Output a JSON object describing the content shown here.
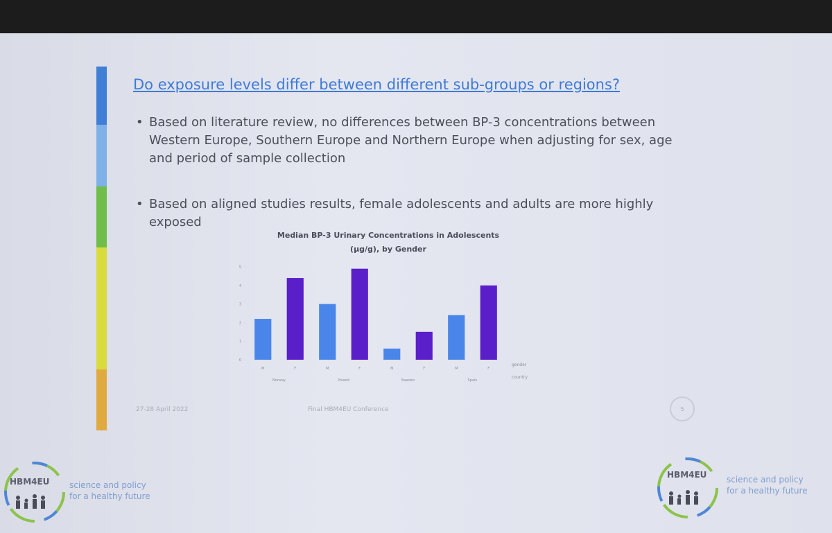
{
  "slide": {
    "title": "Do exposure levels differ between different sub-groups or regions?",
    "bullets": [
      "Based on literature review, no differences between BP-3 concentrations between Western Europe, Southern Europe and Northern Europe when adjusting for sex, age and period of sample collection",
      "Based on aligned studies results, female adolescents and adults are more highly exposed"
    ]
  },
  "chart": {
    "type": "bar",
    "title": [
      "Median BP-3 Urinary Concentrations in Adolescents",
      "(µg/g),  by Gender"
    ],
    "categories": [
      "M",
      "F",
      "M",
      "F",
      "M",
      "F",
      "M",
      "F"
    ],
    "groups": [
      "Norway",
      "Poland",
      "Sweden",
      "Spain"
    ],
    "values": [
      2.2,
      4.4,
      3.0,
      4.9,
      0.6,
      1.5,
      2.4,
      4.0
    ],
    "colors": [
      "#4a86ea",
      "#5a1fc9",
      "#4a86ea",
      "#5a1fc9",
      "#4a86ea",
      "#5a1fc9",
      "#4a86ea",
      "#5a1fc9"
    ],
    "x_label_inner": "gender",
    "x_label_outer": "country",
    "ylim": [
      0,
      5
    ],
    "yticks": [
      0,
      1,
      2,
      3,
      4,
      5
    ]
  },
  "footer": {
    "date": "27-28 April 2022",
    "event": "Final HBM4EU Conference",
    "page": "5"
  },
  "branding": [
    {
      "name": "HBM4EU",
      "tagline": [
        "science and policy",
        "for a healthy future"
      ]
    },
    {
      "name": "HBM4EU",
      "tagline": [
        "science and policy",
        "for a healthy future"
      ]
    }
  ]
}
